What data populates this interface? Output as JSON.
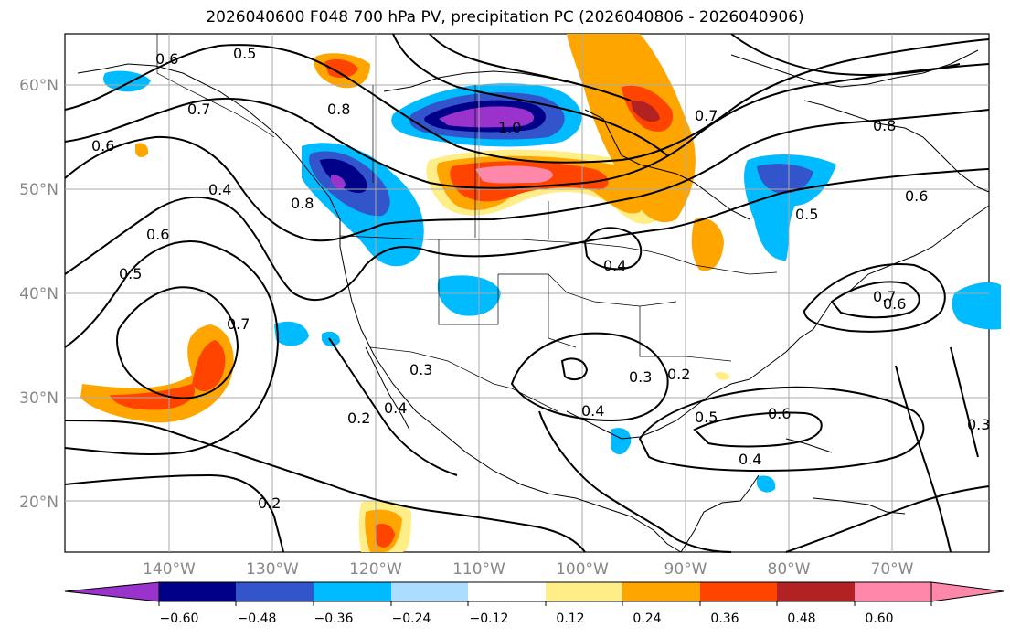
{
  "title": "2026040600 F048 700 hPa PV, precipitation PC (2026040806 - 2026040906)",
  "map": {
    "lon_range": [
      -150,
      -60
    ],
    "lat_range": [
      15,
      65
    ],
    "lat_labels": [
      "20°N",
      "30°N",
      "40°N",
      "50°N",
      "60°N"
    ],
    "lon_labels": [
      "140°W",
      "130°W",
      "120°W",
      "110°W",
      "100°W",
      "90°W",
      "80°W",
      "70°W"
    ]
  },
  "colorbar": {
    "ticks": [
      "−0.60",
      "−0.48",
      "−0.36",
      "−0.24",
      "−0.12",
      "0.12",
      "0.24",
      "0.36",
      "0.48",
      "0.60"
    ],
    "colors": [
      "#9933cc",
      "#000088",
      "#3355cc",
      "#00bbff",
      "#aaddff",
      "#ffffff",
      "#ffee88",
      "#ffa500",
      "#ff4400",
      "#b22222",
      "#ff88aa"
    ]
  },
  "contour_labels": [
    "0.6",
    "0.5",
    "0.7",
    "0.6",
    "0.4",
    "0.8",
    "0.5",
    "0.6",
    "0.7",
    "0.8",
    "1.0",
    "0.7",
    "0.8",
    "0.5",
    "0.6",
    "0.3",
    "0.2",
    "0.4",
    "0.3",
    "0.4",
    "0.5",
    "0.6",
    "0.4",
    "0.2",
    "0.2",
    "0.3",
    "0.7",
    "0.6",
    "0.4"
  ],
  "colors": {
    "contour": "#000000",
    "grid": "#aaaaaa",
    "coast": "#000000"
  }
}
